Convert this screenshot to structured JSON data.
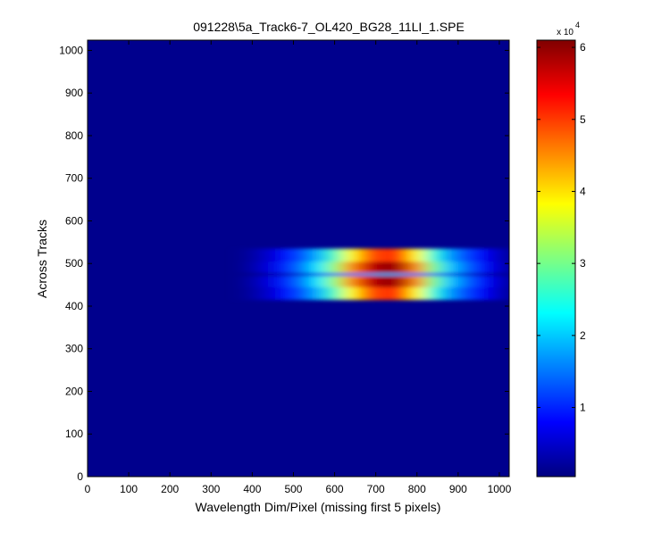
{
  "chart_data": {
    "type": "heatmap",
    "title": "091228\\5a_Track6-7_OL420_BG28_11LI_1.SPE",
    "x_label": "Wavelength Dim/Pixel (missing first 5 pixels)",
    "y_label": "Across Tracks",
    "xlim": [
      0,
      1024
    ],
    "ylim": [
      0,
      1024
    ],
    "xticks": [
      0,
      100,
      200,
      300,
      400,
      500,
      600,
      700,
      800,
      900,
      1000
    ],
    "yticks": [
      0,
      100,
      200,
      300,
      400,
      500,
      600,
      700,
      800,
      900,
      1000
    ],
    "colormap": "jet",
    "clim": [
      400,
      61000
    ],
    "colorbar_ticks": [
      {
        "value": 10000,
        "label": "1"
      },
      {
        "value": 20000,
        "label": "2"
      },
      {
        "value": 30000,
        "label": "3"
      },
      {
        "value": 40000,
        "label": "4"
      },
      {
        "value": 50000,
        "label": "5"
      },
      {
        "value": 60000,
        "label": "6"
      }
    ],
    "colorbar_multiplier": "x 10",
    "colorbar_exponent": "4",
    "background_value": 1200,
    "x_bins": [
      380,
      420,
      460,
      500,
      540,
      580,
      620,
      660,
      700,
      740,
      780,
      820,
      860,
      900,
      940,
      980,
      1020
    ],
    "y_bins": [
      415,
      445,
      472,
      478,
      505,
      535
    ],
    "z": [
      [
        2550,
        5100,
        8500,
        12750,
        18700,
        27200,
        38250,
        47600,
        51000,
        49300,
        38250,
        25500,
        17000,
        11900,
        7650,
        4250
      ],
      [
        3000,
        6000,
        10000,
        15000,
        22000,
        32000,
        45000,
        56000,
        60000,
        58000,
        45000,
        30000,
        20000,
        14000,
        9000,
        5000
      ],
      [
        900,
        1800,
        3000,
        4500,
        6600,
        9600,
        13500,
        16800,
        18000,
        17400,
        13500,
        9000,
        6000,
        4200,
        2700,
        1500
      ],
      [
        3000,
        6000,
        10000,
        15000,
        22000,
        32000,
        45000,
        56000,
        60000,
        58000,
        45000,
        30000,
        20000,
        14000,
        9000,
        5000
      ],
      [
        2550,
        5100,
        8500,
        12750,
        18700,
        27200,
        38250,
        47600,
        51000,
        49300,
        38250,
        25500,
        17000,
        11900,
        7650,
        4250
      ]
    ]
  }
}
